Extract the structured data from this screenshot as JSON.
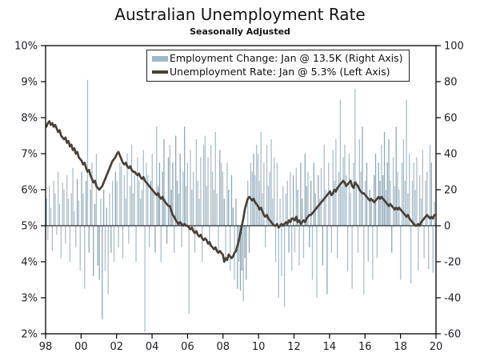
{
  "title": "Australian Unemployment Rate",
  "subtitle": "Seasonally Adjusted",
  "legend": [
    {
      "label": "Employment Change: Jan @ 13.5K (Right Axis)",
      "swatch": "bar"
    },
    {
      "label": "Unemployment Rate: Jan @ 5.3% (Left Axis)",
      "swatch": "line"
    }
  ],
  "colors": {
    "bar_light": "#aabfcb",
    "bar_dark": "#8da8b9",
    "line": "#4a4138",
    "axis": "#000000",
    "tick_text": "#1d1d26"
  },
  "chart_data": {
    "type": "combo-bar-line",
    "x": {
      "freq": "monthly",
      "start_year": 1998,
      "end_label": "Jan 2020",
      "tick_labels": [
        "98",
        "00",
        "02",
        "04",
        "06",
        "08",
        "10",
        "12",
        "14",
        "16",
        "18",
        "20"
      ]
    },
    "left_axis": {
      "min": 2,
      "max": 10,
      "tick_labels": [
        "10%",
        "9%",
        "8%",
        "7%",
        "6%",
        "5%",
        "4%",
        "3%",
        "2%"
      ]
    },
    "right_axis": {
      "min": -60,
      "max": 100,
      "tick_labels": [
        "100",
        "80",
        "60",
        "40",
        "20",
        "0",
        "-20",
        "-40",
        "-60"
      ]
    },
    "zero_baseline": {
      "left_value": 5,
      "right_value": 0
    },
    "series": [
      {
        "name": "Employment Change",
        "type": "bar",
        "axis": "right",
        "unit": "K",
        "values": [
          15,
          -8,
          22,
          10,
          -14,
          25,
          18,
          -5,
          30,
          12,
          -18,
          24,
          20,
          -10,
          28,
          15,
          -20,
          18,
          32,
          8,
          -12,
          26,
          14,
          -25,
          30,
          18,
          -35,
          25,
          81,
          -15,
          20,
          35,
          -28,
          12,
          40,
          -22,
          -30,
          15,
          -52,
          20,
          -25,
          10,
          -38,
          18,
          -15,
          25,
          -20,
          30,
          25,
          -12,
          35,
          33,
          -18,
          28,
          15,
          40,
          -10,
          22,
          45,
          18,
          30,
          -20,
          38,
          25,
          15,
          20,
          42,
          -59,
          35,
          28,
          -12,
          25,
          40,
          18,
          -15,
          55,
          22,
          35,
          -20,
          30,
          48,
          15,
          -10,
          38,
          45,
          20,
          35,
          -15,
          50,
          25,
          18,
          40,
          -12,
          30,
          55,
          22,
          35,
          -49,
          42,
          20,
          30,
          -15,
          48,
          25,
          15,
          38,
          -20,
          45,
          50,
          22,
          38,
          -12,
          45,
          30,
          20,
          52,
          18,
          -15,
          42,
          35,
          30,
          15,
          -20,
          35,
          20,
          -25,
          28,
          10,
          -30,
          15,
          -35,
          -20,
          -36,
          -25,
          -42,
          -18,
          -30,
          25,
          -15,
          35,
          30,
          40,
          28,
          45,
          40,
          25,
          52,
          18,
          35,
          -12,
          45,
          22,
          30,
          48,
          15,
          38,
          -20,
          35,
          -40,
          15,
          -28,
          22,
          -45,
          18,
          25,
          -15,
          30,
          -25,
          28,
          -15,
          32,
          20,
          -22,
          35,
          15,
          -18,
          40,
          22,
          30,
          -12,
          25,
          -30,
          35,
          18,
          -40,
          28,
          15,
          32,
          -22,
          45,
          20,
          -38,
          35,
          20,
          -15,
          42,
          25,
          48,
          -18,
          30,
          70,
          22,
          38,
          45,
          28,
          -25,
          40,
          18,
          -35,
          35,
          76,
          25,
          -15,
          48,
          30,
          55,
          -38,
          25,
          35,
          -20,
          20,
          15,
          -30,
          28,
          40,
          -18,
          35,
          25,
          45,
          28,
          52,
          20,
          35,
          48,
          25,
          -15,
          38,
          22,
          55,
          30,
          20,
          -30,
          35,
          48,
          25,
          70,
          18,
          40,
          -32,
          25,
          35,
          20,
          38,
          -25,
          28,
          15,
          42,
          -18,
          25,
          30,
          -24,
          45,
          35,
          -26,
          13.5
        ]
      },
      {
        "name": "Unemployment Rate",
        "type": "line",
        "axis": "left",
        "unit": "%",
        "values": [
          7.75,
          7.85,
          7.9,
          7.8,
          7.85,
          7.75,
          7.8,
          7.7,
          7.6,
          7.65,
          7.5,
          7.45,
          7.4,
          7.45,
          7.3,
          7.35,
          7.2,
          7.25,
          7.1,
          7.15,
          7.0,
          7.05,
          6.9,
          6.85,
          6.8,
          6.7,
          6.75,
          6.6,
          6.5,
          6.55,
          6.4,
          6.3,
          6.2,
          6.25,
          6.1,
          6.05,
          6.0,
          6.05,
          6.1,
          6.2,
          6.3,
          6.4,
          6.5,
          6.6,
          6.7,
          6.8,
          6.85,
          6.9,
          7.0,
          7.05,
          6.95,
          6.85,
          6.75,
          6.7,
          6.75,
          6.65,
          6.6,
          6.65,
          6.55,
          6.5,
          6.5,
          6.45,
          6.4,
          6.45,
          6.35,
          6.3,
          6.35,
          6.25,
          6.2,
          6.15,
          6.1,
          6.05,
          6.0,
          5.95,
          5.9,
          5.85,
          5.9,
          5.8,
          5.75,
          5.8,
          5.7,
          5.65,
          5.6,
          5.55,
          5.55,
          5.4,
          5.3,
          5.25,
          5.15,
          5.1,
          5.05,
          5.1,
          5.05,
          5.0,
          5.05,
          5.0,
          5.0,
          4.95,
          4.9,
          4.95,
          4.85,
          4.8,
          4.85,
          4.75,
          4.7,
          4.75,
          4.65,
          4.6,
          4.65,
          4.6,
          4.5,
          4.55,
          4.45,
          4.4,
          4.35,
          4.4,
          4.3,
          4.25,
          4.3,
          4.25,
          4.2,
          4.0,
          4.1,
          4.05,
          4.2,
          4.15,
          4.1,
          4.15,
          4.25,
          4.3,
          4.45,
          4.6,
          4.8,
          5.0,
          5.2,
          5.45,
          5.6,
          5.75,
          5.8,
          5.75,
          5.7,
          5.75,
          5.65,
          5.6,
          5.55,
          5.45,
          5.5,
          5.4,
          5.3,
          5.25,
          5.3,
          5.2,
          5.15,
          5.1,
          5.05,
          5.0,
          5.0,
          5.05,
          4.95,
          5.0,
          5.05,
          5.0,
          5.05,
          5.1,
          5.05,
          5.15,
          5.1,
          5.2,
          5.2,
          5.15,
          5.25,
          5.1,
          5.15,
          5.05,
          5.1,
          5.15,
          5.1,
          5.2,
          5.25,
          5.3,
          5.3,
          5.35,
          5.4,
          5.45,
          5.5,
          5.55,
          5.6,
          5.65,
          5.7,
          5.75,
          5.8,
          5.85,
          5.9,
          5.95,
          5.85,
          5.9,
          6.0,
          5.95,
          6.05,
          6.1,
          6.15,
          6.2,
          6.25,
          6.2,
          6.1,
          6.15,
          6.2,
          6.25,
          6.1,
          6.05,
          6.2,
          6.15,
          6.1,
          6.0,
          5.95,
          5.9,
          5.9,
          5.85,
          5.8,
          5.75,
          5.7,
          5.75,
          5.7,
          5.65,
          5.7,
          5.75,
          5.8,
          5.75,
          5.8,
          5.75,
          5.7,
          5.65,
          5.6,
          5.55,
          5.6,
          5.55,
          5.5,
          5.45,
          5.5,
          5.45,
          5.5,
          5.45,
          5.4,
          5.35,
          5.3,
          5.25,
          5.3,
          5.2,
          5.15,
          5.1,
          5.05,
          5.0,
          5.0,
          5.05,
          5.0,
          5.1,
          5.15,
          5.2,
          5.25,
          5.3,
          5.25,
          5.2,
          5.25,
          5.2,
          5.3
        ]
      }
    ]
  }
}
